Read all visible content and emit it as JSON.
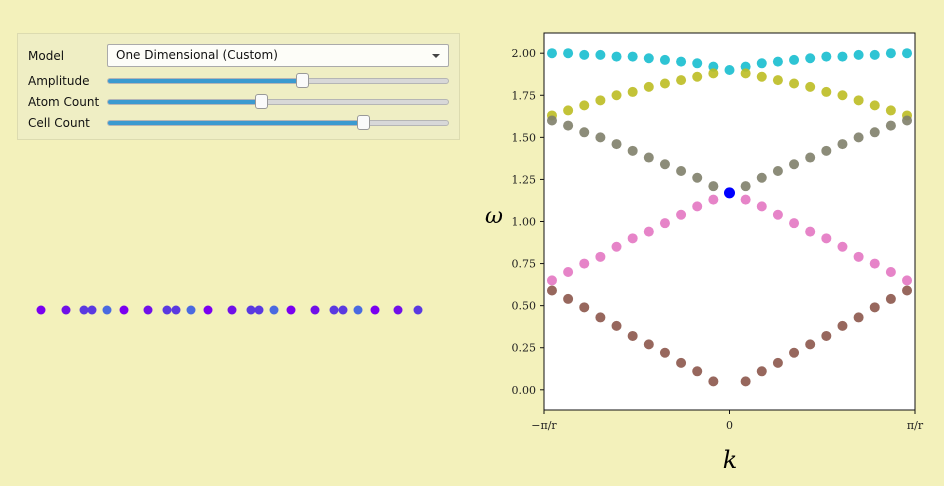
{
  "controls": {
    "model_label": "Model",
    "model_value": "One Dimensional (Custom)",
    "amplitude_label": "Amplitude",
    "amplitude_value": 0.57,
    "atom_count_label": "Atom Count",
    "atom_count_value": 0.45,
    "cell_count_label": "Cell Count",
    "cell_count_value": 0.75,
    "accent_color": "#3b9ad0"
  },
  "chart_data": {
    "type": "scatter",
    "xlabel": "k",
    "ylabel": "ω",
    "x_unit": "π/r",
    "xlim": [
      -1,
      1
    ],
    "ylim": [
      -0.12,
      2.12
    ],
    "xticks": [
      {
        "value": -1,
        "label": "−π/r"
      },
      {
        "value": 0,
        "label": "0"
      },
      {
        "value": 1,
        "label": "π/r"
      }
    ],
    "yticks": [
      "0.00",
      "0.25",
      "0.50",
      "0.75",
      "1.00",
      "1.25",
      "1.50",
      "1.75",
      "2.00"
    ],
    "grid": false,
    "k_values_left": [
      -0.957,
      -0.87,
      -0.783,
      -0.696,
      -0.609,
      -0.522,
      -0.435,
      -0.348,
      -0.261,
      -0.174,
      -0.087
    ],
    "series": [
      {
        "color": "#17becf",
        "center": 1.9,
        "values": [
          2.0,
          2.0,
          1.99,
          1.99,
          1.98,
          1.98,
          1.97,
          1.96,
          1.95,
          1.94,
          1.92
        ]
      },
      {
        "color": "#bcbd22",
        "values": [
          1.63,
          1.66,
          1.69,
          1.72,
          1.75,
          1.77,
          1.8,
          1.82,
          1.84,
          1.86,
          1.88
        ]
      },
      {
        "color": "#7f7f6a",
        "values": [
          1.6,
          1.57,
          1.53,
          1.5,
          1.46,
          1.42,
          1.38,
          1.34,
          1.3,
          1.26,
          1.21
        ]
      },
      {
        "color": "#e377c2",
        "values": [
          0.65,
          0.7,
          0.75,
          0.79,
          0.85,
          0.9,
          0.94,
          0.99,
          1.04,
          1.09,
          1.13
        ]
      },
      {
        "color": "#8c564b",
        "values": [
          0.59,
          0.54,
          0.49,
          0.43,
          0.38,
          0.32,
          0.27,
          0.22,
          0.16,
          0.11,
          0.05
        ]
      }
    ],
    "highlight": {
      "k": 0,
      "omega": 1.17,
      "color": "#0000ff"
    }
  }
}
